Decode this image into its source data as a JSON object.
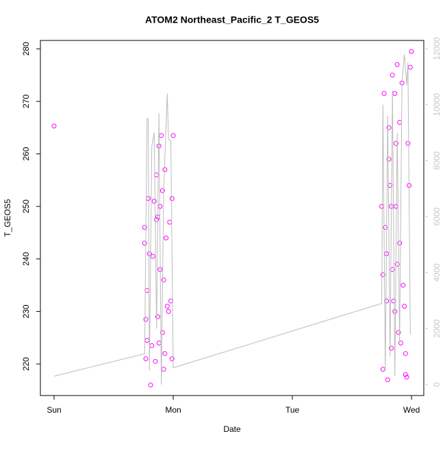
{
  "chart_data": {
    "type": "scatter",
    "title": "ATOM2 Northeast_Pacific_2 T_GEOS5",
    "x_label": "Date",
    "y_label": "T_GEOS5",
    "xlim": [
      -0.115,
      3.103
    ],
    "xticks": [
      {
        "value": 0,
        "label": "Sun"
      },
      {
        "value": 1,
        "label": "Mon"
      },
      {
        "value": 2,
        "label": "Tue"
      },
      {
        "value": 3,
        "label": "Wed"
      }
    ],
    "ylim": [
      214.0,
      281.6
    ],
    "yticks": [
      220,
      230,
      240,
      250,
      260,
      270,
      280
    ],
    "y2lim": [
      -392,
      12294
    ],
    "y2ticks": [
      0,
      2000,
      4000,
      6000,
      8000,
      10000,
      12000
    ],
    "y2_color": "#c8c8c8",
    "series": [
      {
        "type": "scatter",
        "color": "#ff00ff",
        "x": [
          0,
          0.76,
          0.76,
          0.77,
          0.77,
          0.78,
          0.78,
          0.79,
          0.8,
          0.81,
          0.82,
          0.83,
          0.84,
          0.85,
          0.86,
          0.86,
          0.87,
          0.87,
          0.88,
          0.88,
          0.89,
          0.89,
          0.9,
          0.91,
          0.91,
          0.92,
          0.92,
          0.93,
          0.93,
          0.94,
          0.95,
          0.96,
          0.97,
          0.98,
          0.99,
          0.99,
          1.0,
          2.75,
          2.76,
          2.76,
          2.77,
          2.78,
          2.79,
          2.79,
          2.8,
          2.81,
          2.81,
          2.82,
          2.83,
          2.83,
          2.84,
          2.84,
          2.85,
          2.86,
          2.86,
          2.87,
          2.87,
          2.88,
          2.88,
          2.89,
          2.9,
          2.9,
          2.91,
          2.92,
          2.93,
          2.94,
          2.95,
          2.95,
          2.96,
          2.97,
          2.98,
          2.99,
          3.0
        ],
        "values": [
          265.3,
          246,
          243,
          221,
          228.5,
          224.5,
          234,
          251.5,
          241,
          216,
          223.5,
          240.5,
          251,
          220.5,
          256,
          247.5,
          229,
          248,
          224,
          261.5,
          238,
          250,
          263.5,
          226,
          253,
          219,
          236,
          257,
          222,
          244,
          231,
          230,
          247,
          232,
          251.5,
          221,
          263.5,
          250,
          237,
          219,
          271.5,
          246,
          241,
          232,
          217,
          265,
          259,
          254,
          250,
          223,
          275,
          238,
          232,
          271.5,
          230,
          262,
          250,
          239,
          277,
          226,
          266,
          243,
          224,
          273.5,
          235,
          231,
          218,
          222,
          217.5,
          262,
          254,
          276.5,
          279.5
        ]
      },
      {
        "type": "line",
        "axis": "y2",
        "color": "#bbbbbb",
        "x": [
          0,
          0.76,
          0.78,
          0.79,
          0.8,
          0.82,
          0.84,
          0.86,
          0.88,
          0.9,
          0.92,
          0.95,
          0.96,
          0.98,
          1.0,
          2.75,
          2.76,
          2.78,
          2.8,
          2.82,
          2.84,
          2.86,
          2.88,
          2.9,
          2.92,
          2.94,
          2.96,
          2.97,
          2.99
        ],
        "values": [
          300,
          1100,
          9500,
          9500,
          500,
          8500,
          9000,
          2000,
          9700,
          0,
          7000,
          10400,
          8800,
          8700,
          600,
          2900,
          10000,
          500,
          9600,
          1000,
          10500,
          300,
          9000,
          1500,
          10800,
          11800,
          10700,
          11500,
          1800
        ]
      }
    ]
  }
}
